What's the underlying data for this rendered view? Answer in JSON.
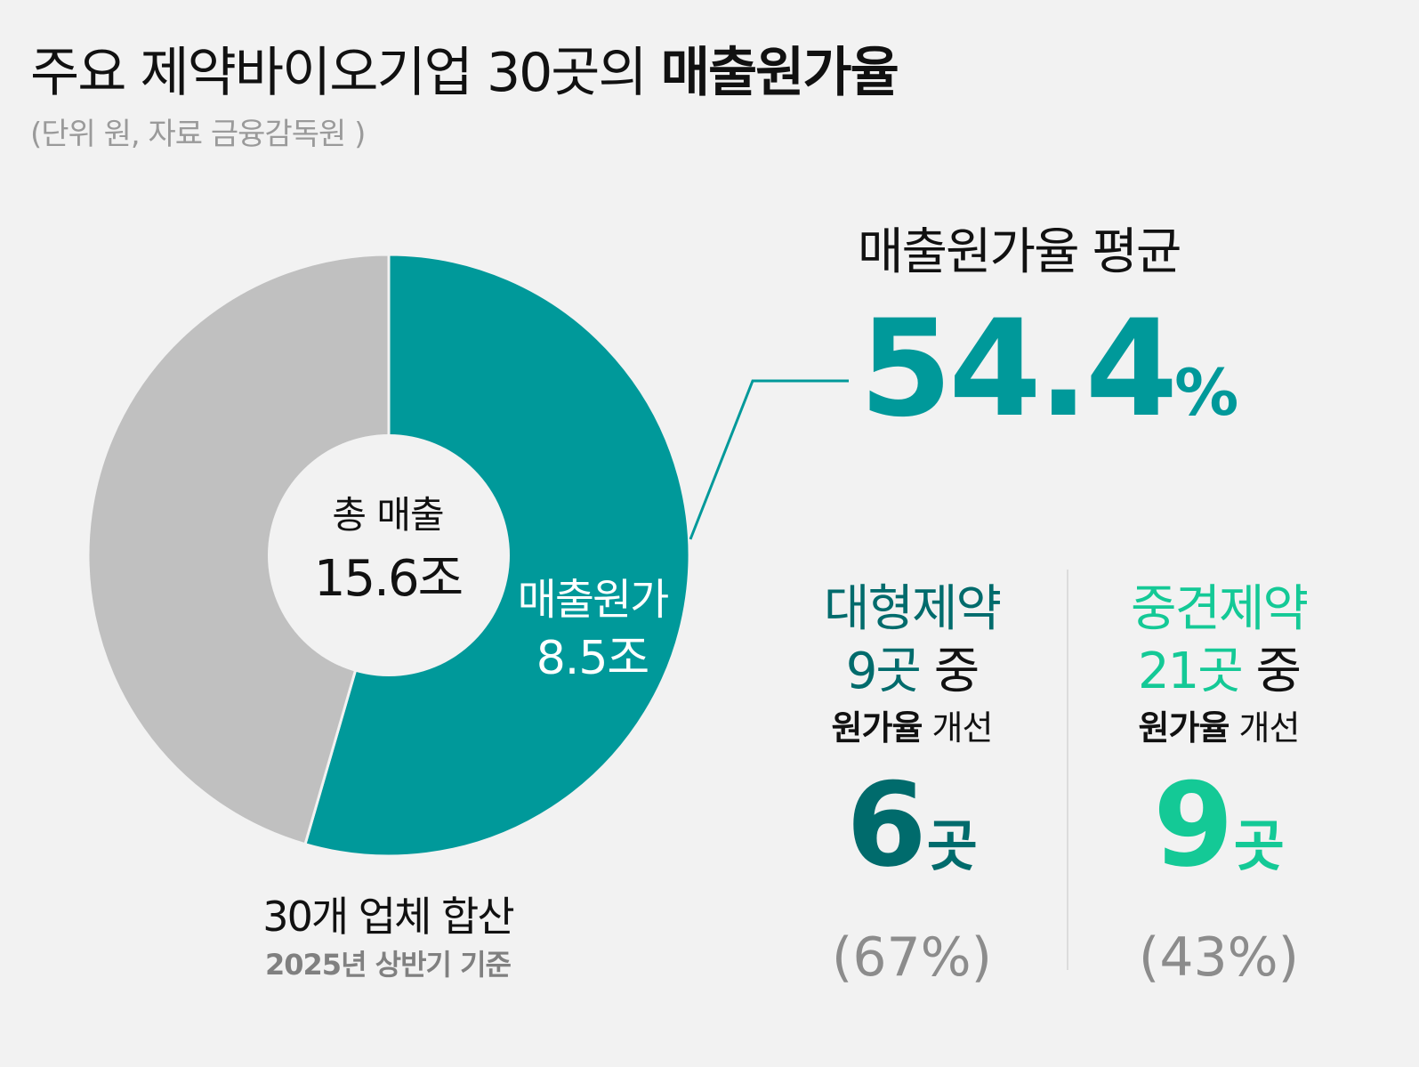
{
  "header": {
    "title_regular": "주요 제약바이오기업 30곳의 ",
    "title_bold": "매출원가율",
    "subtitle": "(단위 원, 자료 금융감독원 )"
  },
  "colors": {
    "cost": "#00999a",
    "rest": "#c0c0c0",
    "big_pharma": "#006b6c",
    "mid_pharma": "#14c996"
  },
  "chart_data": {
    "type": "pie",
    "unit": "조",
    "total_label": "총 매출",
    "total_value": "15.6조",
    "slices": [
      {
        "label": "매출원가",
        "value": 8.5,
        "value_label": "8.5조"
      },
      {
        "label": "",
        "value": 7.1
      }
    ],
    "annotation": "30개 업체 합산",
    "note": "2025년 상반기 기준"
  },
  "average": {
    "label": "매출원가율 평균",
    "value": "54.4",
    "unit": "%"
  },
  "groups": [
    {
      "name": "대형제약",
      "count": "9곳",
      "count_suffix": " 중",
      "improve_bold": "원가율",
      "improve_rest": " 개선",
      "result_num": "6",
      "result_unit": "곳",
      "share": "(67%)"
    },
    {
      "name": "중견제약",
      "count": "21곳",
      "count_suffix": " 중",
      "improve_bold": "원가율",
      "improve_rest": " 개선",
      "result_num": "9",
      "result_unit": "곳",
      "share": "(43%)"
    }
  ]
}
